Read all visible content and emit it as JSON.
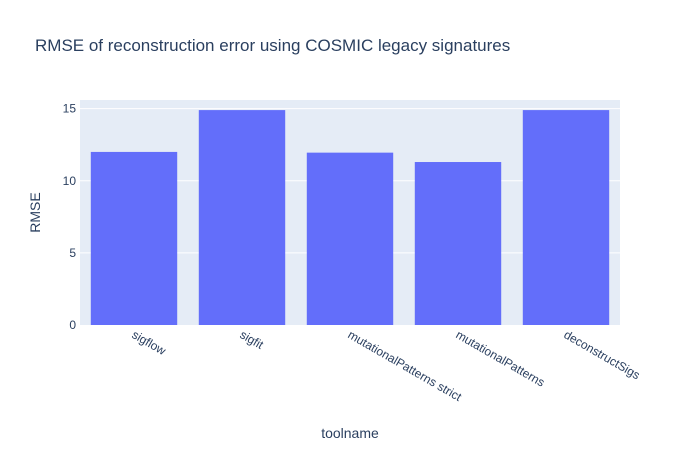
{
  "chart_data": {
    "type": "bar",
    "title": "RMSE of reconstruction error using COSMIC legacy signatures",
    "xlabel": "toolname",
    "ylabel": "RMSE",
    "categories": [
      "sigflow",
      "sigfit",
      "mutationalPatterns strict",
      "mutationalPatterns",
      "deconstructSigs"
    ],
    "values": [
      12.0,
      14.9,
      11.95,
      11.3,
      14.9
    ],
    "ylim": [
      0,
      15.6
    ],
    "yticks": [
      0,
      5,
      10,
      15
    ],
    "grid": true,
    "legend": "none",
    "colors": {
      "bar": "#636efa",
      "plot_bg": "#e5ecf6",
      "grid": "#ffffff",
      "text": "#2a3f5f"
    }
  }
}
